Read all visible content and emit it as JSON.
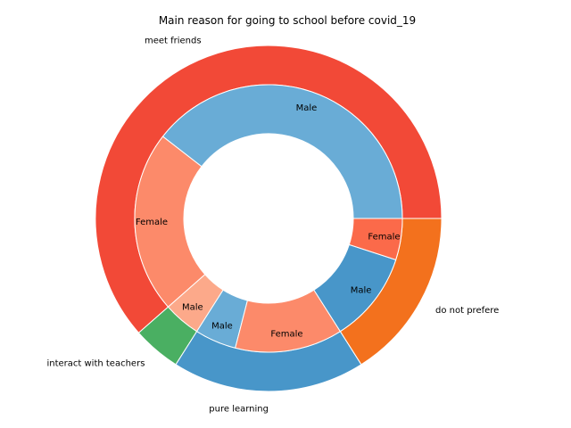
{
  "chart_data": {
    "type": "pie",
    "style": "nested donut",
    "title": "Main reason for going to school before covid_19",
    "start_angle_deg": 0,
    "direction": "counterclockwise",
    "outer": [
      {
        "label": "meet friends",
        "value": 61.5,
        "color": "#f24937"
      },
      {
        "label": "interact with teachers",
        "value": 4.5,
        "color": "#4aaf62"
      },
      {
        "label": "pure learning",
        "value": 18.0,
        "color": "#4896c9"
      },
      {
        "label": "do not prefere",
        "value": 16.0,
        "color": "#f3711d"
      }
    ],
    "inner": [
      {
        "label": "Male",
        "group": "meet friends",
        "value": 39.5,
        "color": "#69acd6"
      },
      {
        "label": "Female",
        "group": "meet friends",
        "value": 22.0,
        "color": "#fc8a6a"
      },
      {
        "label": "Male",
        "group": "interact with teachers",
        "value": 4.5,
        "color": "#fca98a"
      },
      {
        "label": "Male",
        "group": "pure learning",
        "value": 5.0,
        "color": "#69acd6"
      },
      {
        "label": "Female",
        "group": "pure learning",
        "value": 13.0,
        "color": "#fc8a6a"
      },
      {
        "label": "Male",
        "group": "do not prefere",
        "value": 11.0,
        "color": "#4896c9"
      },
      {
        "label": "Female",
        "group": "do not prefere",
        "value": 5.0,
        "color": "#fb6a4a"
      }
    ]
  }
}
